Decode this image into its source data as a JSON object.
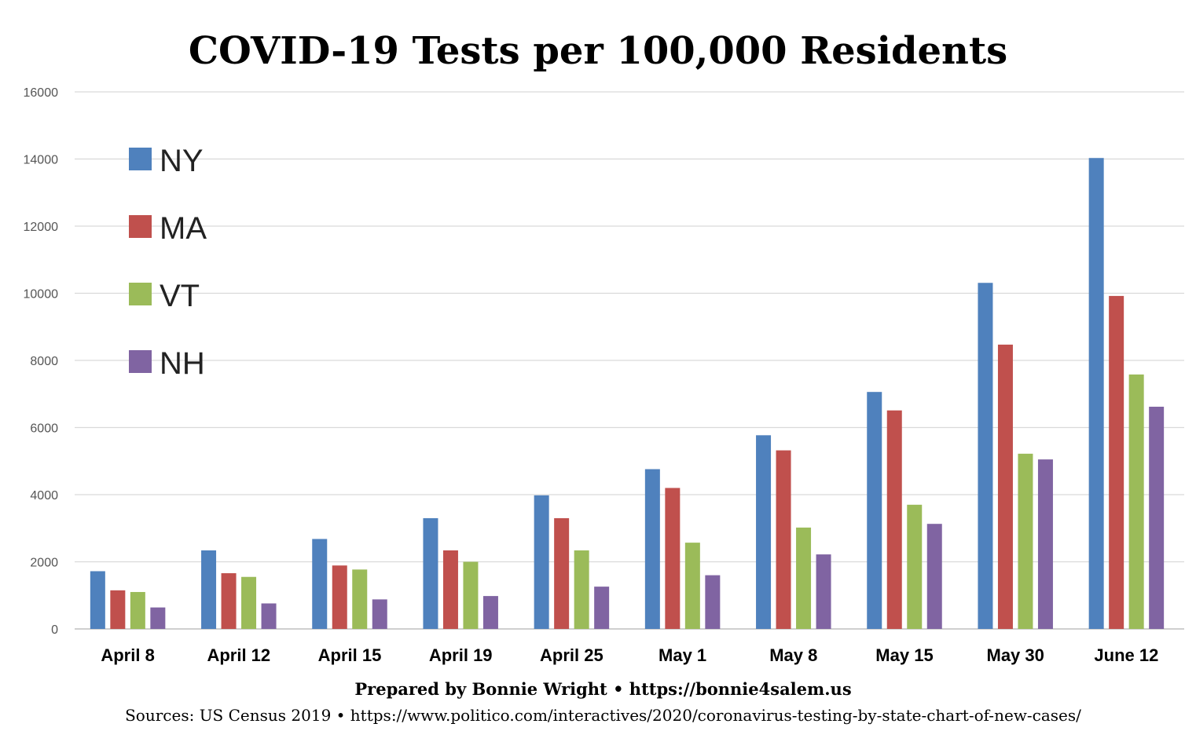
{
  "title": "COVID-19 Tests per 100,000 Residents",
  "footer": {
    "credit": "Prepared by Bonnie Wright • https://bonnie4salem.us",
    "sources": "Sources: US Census 2019 • https://www.politico.com/interactives/2020/coronavirus-testing-by-state-chart-of-new-cases/"
  },
  "chart_data": {
    "type": "bar",
    "title": "COVID-19 Tests per 100,000 Residents",
    "xlabel": "",
    "ylabel": "",
    "ylim": [
      0,
      16000
    ],
    "y_ticks": [
      "0",
      "2000",
      "4000",
      "6000",
      "8000",
      "10000",
      "12000",
      "14000",
      "16000"
    ],
    "grid": true,
    "legend_position": "top-left",
    "categories": [
      "April 8",
      "April 12",
      "April 15",
      "April 19",
      "April 25",
      "May 1",
      "May 8",
      "May 15",
      "May 30",
      "June 12"
    ],
    "series": [
      {
        "name": "NY",
        "color": "#4f81bd",
        "values": [
          1720,
          2340,
          2680,
          3300,
          3980,
          4760,
          5770,
          7060,
          10310,
          14030
        ]
      },
      {
        "name": "MA",
        "color": "#c0504d",
        "values": [
          1150,
          1660,
          1890,
          2340,
          3300,
          4200,
          5320,
          6510,
          8470,
          9920
        ]
      },
      {
        "name": "VT",
        "color": "#9bbb59",
        "values": [
          1100,
          1550,
          1770,
          2000,
          2340,
          2570,
          3020,
          3700,
          5220,
          7580
        ]
      },
      {
        "name": "NH",
        "color": "#8064a2",
        "values": [
          640,
          760,
          880,
          980,
          1260,
          1600,
          2220,
          3130,
          5050,
          6620
        ]
      }
    ]
  }
}
